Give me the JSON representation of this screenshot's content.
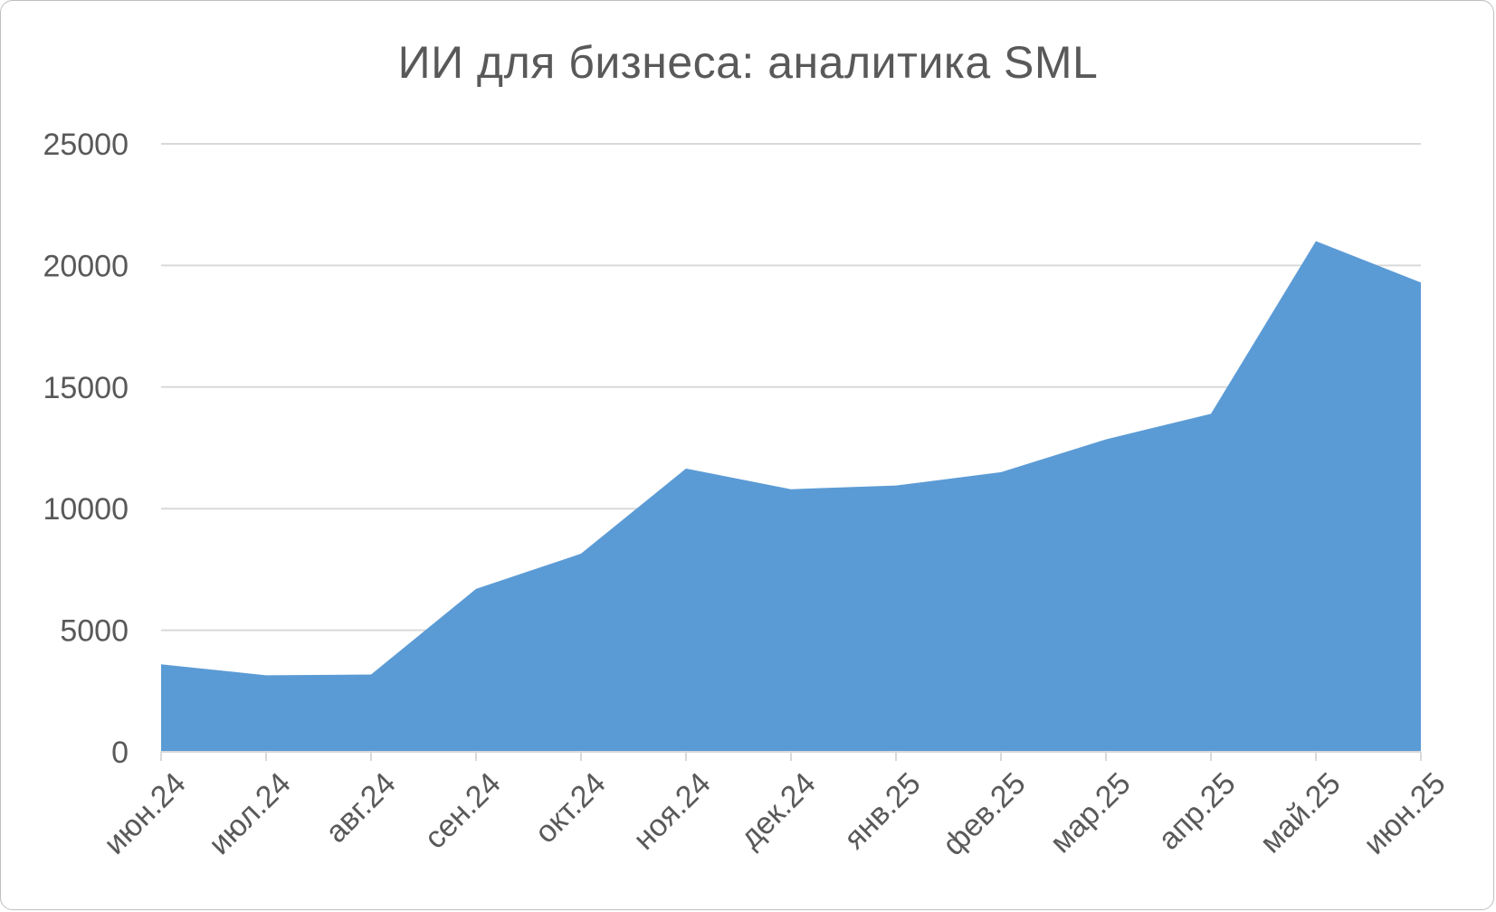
{
  "chart_data": {
    "type": "area",
    "title": "ИИ для бизнеса: аналитика SML",
    "xlabel": "",
    "ylabel": "",
    "categories": [
      "июн.24",
      "июл.24",
      "авг.24",
      "сен.24",
      "окт.24",
      "ноя.24",
      "дек.24",
      "янв.25",
      "фев.25",
      "мар.25",
      "апр.25",
      "май.25",
      "июн.25"
    ],
    "series": [
      {
        "values": [
          3600,
          3150,
          3180,
          6700,
          8150,
          11650,
          10800,
          10950,
          11500,
          12850,
          13900,
          21000,
          19300
        ]
      }
    ],
    "ylim": [
      0,
      25000
    ],
    "yticks": [
      0,
      5000,
      10000,
      15000,
      20000,
      25000
    ],
    "grid": true,
    "legend": "none",
    "colors": {
      "area": "#5b9bd5",
      "grid": "#d9d9d9",
      "axis": "#d9d9d9",
      "text": "#595959"
    }
  }
}
